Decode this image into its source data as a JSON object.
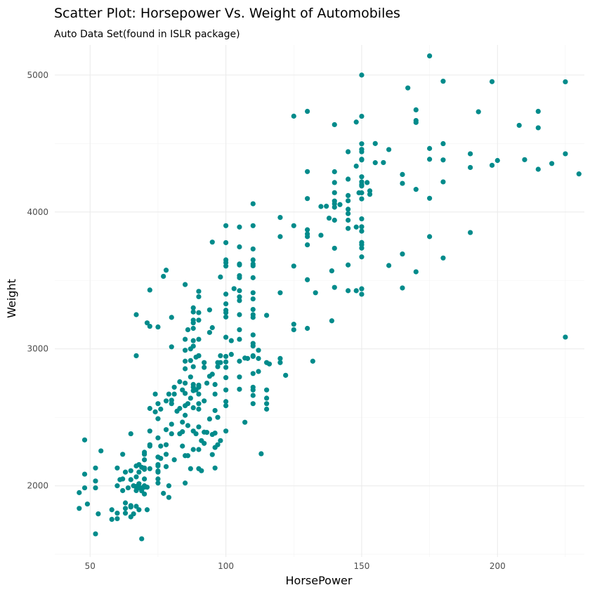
{
  "chart_data": {
    "type": "scatter",
    "title": "Scatter Plot: Horsepower Vs. Weight of Automobiles",
    "subtitle": "Auto Data Set(found in ISLR package)",
    "xlabel": "HorsePower",
    "ylabel": "Weight",
    "xlim": [
      37,
      232
    ],
    "ylim": [
      1480,
      5220
    ],
    "x_major_ticks": [
      50,
      100,
      150,
      200
    ],
    "x_minor_ticks": [
      75,
      125,
      175,
      225
    ],
    "y_major_ticks": [
      2000,
      3000,
      4000,
      5000
    ],
    "y_minor_ticks": [
      1500,
      2500,
      3500,
      4500
    ],
    "x_tick_labels": [
      "50",
      "100",
      "150",
      "200"
    ],
    "y_tick_labels": [
      "2000",
      "3000",
      "4000",
      "5000"
    ],
    "grid": true,
    "legend": "none",
    "point_color": "#008b8b",
    "points": [
      [
        46,
        1950
      ],
      [
        46,
        1835
      ],
      [
        48,
        2335
      ],
      [
        48,
        2085
      ],
      [
        48,
        1985
      ],
      [
        49,
        1867
      ],
      [
        52,
        2130
      ],
      [
        52,
        2035
      ],
      [
        52,
        1985
      ],
      [
        52,
        1649
      ],
      [
        53,
        1795
      ],
      [
        54,
        2255
      ],
      [
        58,
        1825
      ],
      [
        58,
        1755
      ],
      [
        60,
        2130
      ],
      [
        60,
        2000
      ],
      [
        60,
        1800
      ],
      [
        60,
        1760
      ],
      [
        61,
        2045
      ],
      [
        62,
        2230
      ],
      [
        62,
        2050
      ],
      [
        62,
        1965
      ],
      [
        63,
        2100
      ],
      [
        63,
        1835
      ],
      [
        63,
        1875
      ],
      [
        63,
        1800
      ],
      [
        64,
        1985
      ],
      [
        65,
        2110
      ],
      [
        65,
        2380
      ],
      [
        65,
        2045
      ],
      [
        65,
        1855
      ],
      [
        65,
        1845
      ],
      [
        65,
        1773
      ],
      [
        66,
        1795
      ],
      [
        66,
        2000
      ],
      [
        67,
        2145
      ],
      [
        67,
        1965
      ],
      [
        67,
        1995
      ],
      [
        67,
        1990
      ],
      [
        67,
        1850
      ],
      [
        67,
        2065
      ],
      [
        67,
        3250
      ],
      [
        67,
        2950
      ],
      [
        68,
        2155
      ],
      [
        68,
        2100
      ],
      [
        68,
        2015
      ],
      [
        68,
        1985
      ],
      [
        68,
        1825
      ],
      [
        69,
        2135
      ],
      [
        69,
        1963
      ],
      [
        69,
        1985
      ],
      [
        69,
        1613
      ],
      [
        70,
        2120
      ],
      [
        70,
        2245
      ],
      [
        70,
        2230
      ],
      [
        70,
        1990
      ],
      [
        70,
        1940
      ],
      [
        70,
        2050
      ],
      [
        70,
        2000
      ],
      [
        70,
        2190
      ],
      [
        70,
        2130
      ],
      [
        71,
        1990
      ],
      [
        71,
        1825
      ],
      [
        71,
        3190
      ],
      [
        72,
        2300
      ],
      [
        72,
        2290
      ],
      [
        72,
        2125
      ],
      [
        72,
        2400
      ],
      [
        72,
        2565
      ],
      [
        72,
        3165
      ],
      [
        72,
        3430
      ],
      [
        74,
        2670
      ],
      [
        74,
        2540
      ],
      [
        75,
        2210
      ],
      [
        75,
        2155
      ],
      [
        75,
        2145
      ],
      [
        75,
        2100
      ],
      [
        75,
        2020
      ],
      [
        75,
        2050
      ],
      [
        75,
        2108
      ],
      [
        75,
        2490
      ],
      [
        75,
        2350
      ],
      [
        75,
        3160
      ],
      [
        75,
        2600
      ],
      [
        76,
        2560
      ],
      [
        76,
        2290
      ],
      [
        76,
        2200
      ],
      [
        77,
        1945
      ],
      [
        77,
        3530
      ],
      [
        78,
        3575
      ],
      [
        78,
        2230
      ],
      [
        78,
        2410
      ],
      [
        78,
        2300
      ],
      [
        78,
        2620
      ],
      [
        78,
        2140
      ],
      [
        79,
        1915
      ],
      [
        79,
        2670
      ],
      [
        79,
        2000
      ],
      [
        80,
        3230
      ],
      [
        80,
        3015
      ],
      [
        80,
        2450
      ],
      [
        80,
        2600
      ],
      [
        80,
        2625
      ],
      [
        80,
        2380
      ],
      [
        81,
        2720
      ],
      [
        81,
        2190
      ],
      [
        81,
        2670
      ],
      [
        82,
        2545
      ],
      [
        83,
        2380
      ],
      [
        83,
        2565
      ],
      [
        83,
        2760
      ],
      [
        84,
        2395
      ],
      [
        84,
        2290
      ],
      [
        84,
        2465
      ],
      [
        84,
        2700
      ],
      [
        85,
        3470
      ],
      [
        85,
        3070
      ],
      [
        85,
        2990
      ],
      [
        85,
        2855
      ],
      [
        85,
        2675
      ],
      [
        85,
        2585
      ],
      [
        85,
        2515
      ],
      [
        85,
        2220
      ],
      [
        85,
        2020
      ],
      [
        85,
        2910
      ],
      [
        85,
        2750
      ],
      [
        86,
        2220
      ],
      [
        86,
        2440
      ],
      [
        86,
        2600
      ],
      [
        86,
        3140
      ],
      [
        87,
        2125
      ],
      [
        87,
        2640
      ],
      [
        87,
        3000
      ],
      [
        87,
        2915
      ],
      [
        87,
        2795
      ],
      [
        88,
        3300
      ],
      [
        88,
        3190
      ],
      [
        88,
        3210
      ],
      [
        88,
        2740
      ],
      [
        88,
        2720
      ],
      [
        88,
        2695
      ],
      [
        88,
        2570
      ],
      [
        88,
        2400
      ],
      [
        88,
        2265
      ],
      [
        88,
        3060
      ],
      [
        88,
        2870
      ],
      [
        88,
        3020
      ],
      [
        88,
        3270
      ],
      [
        88,
        3150
      ],
      [
        89,
        2940
      ],
      [
        89,
        2700
      ],
      [
        89,
        2380
      ],
      [
        90,
        3420
      ],
      [
        90,
        3381
      ],
      [
        90,
        3265
      ],
      [
        90,
        3210
      ],
      [
        90,
        3070
      ],
      [
        90,
        2950
      ],
      [
        90,
        2735
      ],
      [
        90,
        2720
      ],
      [
        90,
        2670
      ],
      [
        90,
        2600
      ],
      [
        90,
        2560
      ],
      [
        90,
        2430
      ],
      [
        90,
        2265
      ],
      [
        90,
        2950
      ],
      [
        90,
        2125
      ],
      [
        91,
        2110
      ],
      [
        91,
        2330
      ],
      [
        92,
        2865
      ],
      [
        92,
        2310
      ],
      [
        92,
        2900
      ],
      [
        92,
        2620
      ],
      [
        92,
        2392
      ],
      [
        93,
        2750
      ],
      [
        93,
        2390
      ],
      [
        94,
        3285
      ],
      [
        94,
        3120
      ],
      [
        94,
        2800
      ],
      [
        94,
        2488
      ],
      [
        95,
        3780
      ],
      [
        95,
        3155
      ],
      [
        95,
        2815
      ],
      [
        95,
        2375
      ],
      [
        95,
        2228
      ],
      [
        96,
        2130
      ],
      [
        96,
        2670
      ],
      [
        96,
        2280
      ],
      [
        96,
        2385
      ],
      [
        96,
        2550
      ],
      [
        96,
        2740
      ],
      [
        97,
        2500
      ],
      [
        97,
        2300
      ],
      [
        97,
        2900
      ],
      [
        97,
        2870
      ],
      [
        98,
        2330
      ],
      [
        98,
        2950
      ],
      [
        98,
        3525
      ],
      [
        98,
        2900
      ],
      [
        100,
        3630
      ],
      [
        100,
        3776
      ],
      [
        100,
        3400
      ],
      [
        100,
        3329
      ],
      [
        100,
        3282
      ],
      [
        100,
        3233
      ],
      [
        100,
        3085
      ],
      [
        100,
        2945
      ],
      [
        100,
        2905
      ],
      [
        100,
        2700
      ],
      [
        100,
        2615
      ],
      [
        100,
        2585
      ],
      [
        100,
        2400
      ],
      [
        100,
        3900
      ],
      [
        100,
        2865
      ],
      [
        100,
        2790
      ],
      [
        100,
        3605
      ],
      [
        100,
        3650
      ],
      [
        100,
        3265
      ],
      [
        102,
        3060
      ],
      [
        102,
        2960
      ],
      [
        103,
        3440
      ],
      [
        105,
        3890
      ],
      [
        105,
        3613
      ],
      [
        105,
        3425
      ],
      [
        105,
        3353
      ],
      [
        105,
        3250
      ],
      [
        105,
        3140
      ],
      [
        105,
        3070
      ],
      [
        105,
        2910
      ],
      [
        105,
        2795
      ],
      [
        105,
        3620
      ],
      [
        105,
        3535
      ],
      [
        105,
        2705
      ],
      [
        105,
        3745
      ],
      [
        105,
        3520
      ],
      [
        105,
        3380
      ],
      [
        107,
        2464
      ],
      [
        107,
        2933
      ],
      [
        108,
        2930
      ],
      [
        110,
        4060
      ],
      [
        110,
        3900
      ],
      [
        110,
        3730
      ],
      [
        110,
        3650
      ],
      [
        110,
        3620
      ],
      [
        110,
        3520
      ],
      [
        110,
        3410
      ],
      [
        110,
        3365
      ],
      [
        110,
        3288
      ],
      [
        110,
        3230
      ],
      [
        110,
        3040
      ],
      [
        110,
        2950
      ],
      [
        110,
        2820
      ],
      [
        110,
        2720
      ],
      [
        110,
        2660
      ],
      [
        110,
        2600
      ],
      [
        110,
        3021
      ],
      [
        110,
        2945
      ],
      [
        110,
        3607
      ],
      [
        110,
        3250
      ],
      [
        110,
        2700
      ],
      [
        110,
        3102
      ],
      [
        112,
        2835
      ],
      [
        112,
        2930
      ],
      [
        112,
        2990
      ],
      [
        113,
        2234
      ],
      [
        115,
        3245
      ],
      [
        115,
        2900
      ],
      [
        115,
        2700
      ],
      [
        115,
        2600
      ],
      [
        115,
        2560
      ],
      [
        115,
        2640
      ],
      [
        116,
        2890
      ],
      [
        120,
        3960
      ],
      [
        120,
        3820
      ],
      [
        120,
        3410
      ],
      [
        120,
        2930
      ],
      [
        120,
        2900
      ],
      [
        122,
        2807
      ],
      [
        125,
        3900
      ],
      [
        125,
        3605
      ],
      [
        125,
        3140
      ],
      [
        125,
        3180
      ],
      [
        125,
        4700
      ],
      [
        130,
        4295
      ],
      [
        130,
        4098
      ],
      [
        130,
        3870
      ],
      [
        130,
        3840
      ],
      [
        130,
        3820
      ],
      [
        130,
        3505
      ],
      [
        130,
        3150
      ],
      [
        130,
        4735
      ],
      [
        130,
        3760
      ],
      [
        132,
        2910
      ],
      [
        133,
        3410
      ],
      [
        135,
        3830
      ],
      [
        135,
        4040
      ],
      [
        137,
        4042
      ],
      [
        138,
        3955
      ],
      [
        139,
        3205
      ],
      [
        139,
        3570
      ],
      [
        140,
        4638
      ],
      [
        140,
        4294
      ],
      [
        140,
        4215
      ],
      [
        140,
        4141
      ],
      [
        140,
        4080
      ],
      [
        140,
        3940
      ],
      [
        140,
        3735
      ],
      [
        140,
        3449
      ],
      [
        140,
        4060
      ],
      [
        140,
        4035
      ],
      [
        142,
        4054
      ],
      [
        145,
        4440
      ],
      [
        145,
        4082
      ],
      [
        145,
        3988
      ],
      [
        145,
        3880
      ],
      [
        145,
        3613
      ],
      [
        145,
        4120
      ],
      [
        145,
        3425
      ],
      [
        145,
        4240
      ],
      [
        145,
        4020
      ],
      [
        145,
        3940
      ],
      [
        148,
        4657
      ],
      [
        148,
        4335
      ],
      [
        148,
        3890
      ],
      [
        148,
        3425
      ],
      [
        149,
        4140
      ],
      [
        150,
        5000
      ],
      [
        150,
        4699
      ],
      [
        150,
        4498
      ],
      [
        150,
        4457
      ],
      [
        150,
        4440
      ],
      [
        150,
        4385
      ],
      [
        150,
        4257
      ],
      [
        150,
        4190
      ],
      [
        150,
        4140
      ],
      [
        150,
        4096
      ],
      [
        150,
        3950
      ],
      [
        150,
        3892
      ],
      [
        150,
        3777
      ],
      [
        150,
        3761
      ],
      [
        150,
        3672
      ],
      [
        150,
        3439
      ],
      [
        150,
        3399
      ],
      [
        150,
        3860
      ],
      [
        150,
        4200
      ],
      [
        150,
        4220
      ],
      [
        150,
        4380
      ],
      [
        150,
        3736
      ],
      [
        152,
        4215
      ],
      [
        153,
        4154
      ],
      [
        153,
        4129
      ],
      [
        155,
        4500
      ],
      [
        155,
        4360
      ],
      [
        158,
        4361
      ],
      [
        160,
        4456
      ],
      [
        160,
        3609
      ],
      [
        165,
        4274
      ],
      [
        165,
        4209
      ],
      [
        165,
        3693
      ],
      [
        165,
        3445
      ],
      [
        167,
        4906
      ],
      [
        170,
        4746
      ],
      [
        170,
        4668
      ],
      [
        170,
        4654
      ],
      [
        170,
        4165
      ],
      [
        170,
        3563
      ],
      [
        175,
        5140
      ],
      [
        175,
        4464
      ],
      [
        175,
        4385
      ],
      [
        175,
        4100
      ],
      [
        175,
        3820
      ],
      [
        180,
        4955
      ],
      [
        180,
        4499
      ],
      [
        180,
        4380
      ],
      [
        180,
        4220
      ],
      [
        180,
        3664
      ],
      [
        190,
        4425
      ],
      [
        190,
        4325
      ],
      [
        190,
        3850
      ],
      [
        193,
        4732
      ],
      [
        198,
        4952
      ],
      [
        198,
        4341
      ],
      [
        200,
        4376
      ],
      [
        208,
        4633
      ],
      [
        210,
        4382
      ],
      [
        215,
        4735
      ],
      [
        215,
        4615
      ],
      [
        215,
        4312
      ],
      [
        220,
        4354
      ],
      [
        225,
        4951
      ],
      [
        225,
        4425
      ],
      [
        225,
        3086
      ],
      [
        230,
        4278
      ]
    ]
  }
}
